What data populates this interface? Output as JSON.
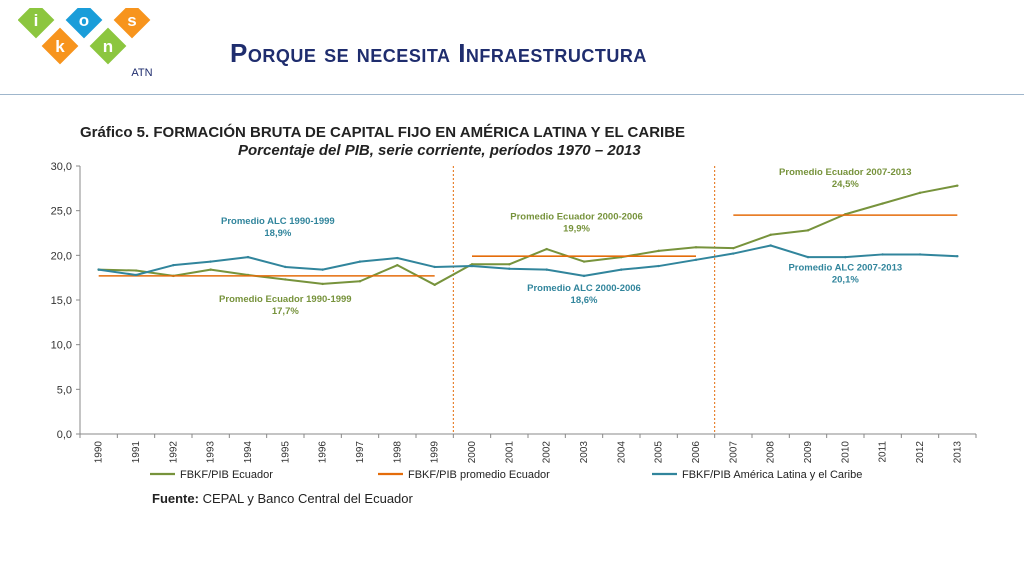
{
  "header": {
    "title": "Porque se necesita Infraestructura",
    "logo": {
      "letters": [
        "i",
        "k",
        "o",
        "n",
        "s"
      ],
      "subtext": "ATN",
      "colors": [
        "#8cc63f",
        "#f7941d",
        "#1a9dd9",
        "#8cc63f",
        "#f7941d"
      ]
    }
  },
  "chart_title": "Gráfico 5. FORMACIÓN BRUTA DE CAPITAL FIJO EN AMÉRICA LATINA Y EL CARIBE",
  "chart_subtitle": "Porcentaje del PIB,  serie corriente, períodos 1970 – 2013",
  "source": {
    "label": "Fuente:",
    "text": " CEPAL y Banco Central del Ecuador"
  },
  "chart_data": {
    "type": "line",
    "x": [
      "1990",
      "1991",
      "1992",
      "1993",
      "1994",
      "1995",
      "1996",
      "1997",
      "1998",
      "1999",
      "2000",
      "2001",
      "2002",
      "2003",
      "2004",
      "2005",
      "2006",
      "2007",
      "2008",
      "2009",
      "2010",
      "2011",
      "2012",
      "2013"
    ],
    "ylim": [
      0,
      30
    ],
    "yticks": [
      "0,0",
      "5,0",
      "10,0",
      "15,0",
      "20,0",
      "25,0",
      "30,0"
    ],
    "grid": false,
    "legend": "bottom",
    "series": [
      {
        "name": "FBKF/PIB Ecuador",
        "color": "#77933c",
        "values": [
          18.4,
          18.3,
          17.7,
          18.4,
          17.8,
          17.3,
          16.8,
          17.1,
          18.9,
          16.7,
          19.0,
          19.0,
          20.7,
          19.3,
          19.8,
          20.5,
          20.9,
          20.8,
          22.3,
          22.8,
          24.6,
          25.8,
          27.0,
          27.8
        ]
      },
      {
        "name": "FBKF/PIB promedio Ecuador",
        "color": "#e46c0a",
        "segments": [
          {
            "from": "1990",
            "to": "1999",
            "value": 17.7
          },
          {
            "from": "2000",
            "to": "2006",
            "value": 19.9
          },
          {
            "from": "2007",
            "to": "2013",
            "value": 24.5
          }
        ]
      },
      {
        "name": "FBKF/PIB América Latina y el Caribe",
        "color": "#31859c",
        "values": [
          18.4,
          17.8,
          18.9,
          19.3,
          19.8,
          18.7,
          18.4,
          19.3,
          19.7,
          18.7,
          18.8,
          18.5,
          18.4,
          17.7,
          18.4,
          18.8,
          19.5,
          20.2,
          21.1,
          19.8,
          19.8,
          20.1,
          20.1,
          19.9
        ]
      }
    ],
    "dividers": [
      "1999.5",
      "2006.5"
    ],
    "divider_color": "#e46c0a",
    "annotations": [
      {
        "line1": "Promedio  ALC  1990-1999",
        "line2": "18,9%",
        "color": "#31859c",
        "at_x": 1994.8,
        "at_y": 23.5
      },
      {
        "line1": "Promedio  Ecuador 1990-1999",
        "line2": "17,7%",
        "color": "#77933c",
        "at_x": 1995.0,
        "at_y": 14.8
      },
      {
        "line1": "Promedio  Ecuador  2000-2006",
        "line2": "19,9%",
        "color": "#77933c",
        "at_x": 2002.8,
        "at_y": 24.0
      },
      {
        "line1": "Promedio  ALC  2000-2006",
        "line2": "18,6%",
        "color": "#31859c",
        "at_x": 2003.0,
        "at_y": 16.0
      },
      {
        "line1": "Promedio  Ecuador  2007-2013",
        "line2": "24,5%",
        "color": "#77933c",
        "at_x": 2010.0,
        "at_y": 29.0
      },
      {
        "line1": "Promedio  ALC  2007-2013",
        "line2": "20,1%",
        "color": "#31859c",
        "at_x": 2010.0,
        "at_y": 18.3
      }
    ]
  }
}
